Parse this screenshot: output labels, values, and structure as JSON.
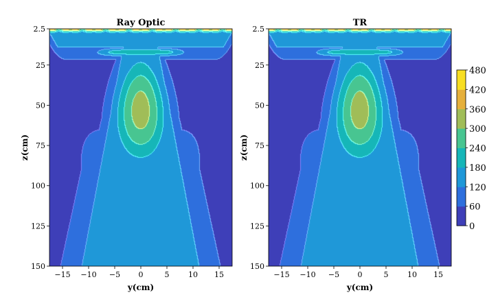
{
  "chart_data": [
    {
      "type": "heatmap",
      "subtype": "filled-contour",
      "title": "Ray Optic",
      "xlabel": "y(cm)",
      "ylabel": "z(cm)",
      "xlim": [
        -17.5,
        17.5
      ],
      "ylim": [
        150,
        2.5
      ],
      "y_inverted": true,
      "x_ticks": [
        -15,
        -10,
        -5,
        0,
        5,
        10,
        15
      ],
      "y_ticks": [
        2.5,
        25,
        50,
        75,
        100,
        125,
        150
      ],
      "field": {
        "peak_z": 53,
        "peak_value": 330,
        "surface_value": 230,
        "lobe_z": 17,
        "lobe_value": 215
      }
    },
    {
      "type": "heatmap",
      "subtype": "filled-contour",
      "title": "TR",
      "xlabel": "y(cm)",
      "ylabel": "z(cm)",
      "xlim": [
        -17.5,
        17.5
      ],
      "ylim": [
        150,
        2.5
      ],
      "y_inverted": true,
      "x_ticks": [
        -15,
        -10,
        -5,
        0,
        5,
        10,
        15
      ],
      "y_ticks": [
        2.5,
        25,
        50,
        75,
        100,
        125,
        150
      ],
      "field": {
        "peak_z": 53,
        "peak_value": 330,
        "surface_value": 230,
        "lobe_z": 17,
        "lobe_value": 215
      }
    }
  ],
  "colorbar": {
    "levels": [
      0,
      60,
      120,
      180,
      240,
      300,
      360,
      420,
      480
    ],
    "tick_labels": [
      "0",
      "60",
      "120",
      "180",
      "240",
      "300",
      "360",
      "420",
      "480"
    ],
    "colors": [
      "#3e3fb8",
      "#2e6fdd",
      "#1f98d8",
      "#16b6b8",
      "#48c591",
      "#a0bd58",
      "#e6b03c",
      "#f8de22"
    ]
  }
}
